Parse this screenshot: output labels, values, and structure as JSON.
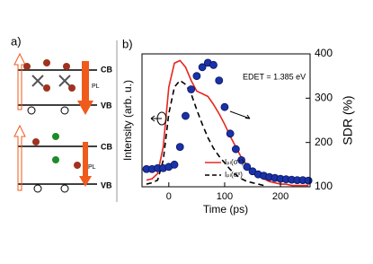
{
  "panel_labels": [
    "a)",
    "b)"
  ],
  "diagram": {
    "top": {
      "cb": "CB",
      "vb": "VB",
      "pl": "PL"
    },
    "bottom": {
      "cb": "CB",
      "vb": "VB",
      "pl": "PL"
    }
  },
  "chart_data": {
    "type": "line",
    "x_label": "Time (ps)",
    "y_label": "Intensity (arb. u.)",
    "y2_label": "SDR (%)",
    "annotation": "EDET = 1.385 eV",
    "x": [
      -40,
      -30,
      -20,
      -10,
      0,
      10,
      20,
      30,
      40,
      50,
      60,
      70,
      80,
      90,
      100,
      110,
      120,
      130,
      140,
      150,
      160,
      170,
      180,
      190,
      200,
      210,
      220,
      230,
      240,
      250
    ],
    "xlim": [
      -48,
      253
    ],
    "xticks": [
      0,
      100,
      200
    ],
    "ylim": [
      0,
      1
    ],
    "y2lim": [
      100,
      400
    ],
    "y2ticks": [
      100,
      200,
      300,
      400
    ],
    "series": [
      {
        "name": "Iₚₗ(σ⁺)",
        "color": "#e8261e",
        "style": "solid",
        "values": [
          0.05,
          0.06,
          0.1,
          0.3,
          0.75,
          0.93,
          0.95,
          0.9,
          0.8,
          0.72,
          0.7,
          0.68,
          0.62,
          0.55,
          0.47,
          0.38,
          0.3,
          0.22,
          0.16,
          0.12,
          0.08,
          0.06,
          0.04,
          0.03,
          0.02,
          0.02,
          0.01,
          0.01,
          0.01,
          0.01
        ]
      },
      {
        "name": "Iₚₗ(σˣ)",
        "color": "#000000",
        "style": "dashed",
        "values": [
          0.02,
          0.03,
          0.05,
          0.2,
          0.55,
          0.75,
          0.8,
          0.77,
          0.7,
          0.58,
          0.47,
          0.37,
          0.29,
          0.23,
          0.18,
          0.13,
          0.09,
          0.06,
          0.04,
          0.03,
          0.02,
          0.01,
          null,
          null,
          null,
          null,
          null,
          null,
          null,
          null
        ]
      },
      {
        "color": "#1a32a8",
        "axis": "y2",
        "style": "markers",
        "values": [
          140,
          140,
          142,
          142,
          145,
          150,
          190,
          260,
          320,
          350,
          370,
          380,
          375,
          340,
          280,
          220,
          185,
          160,
          145,
          135,
          128,
          125,
          122,
          120,
          118,
          117,
          116,
          115,
          115,
          114
        ]
      }
    ]
  }
}
